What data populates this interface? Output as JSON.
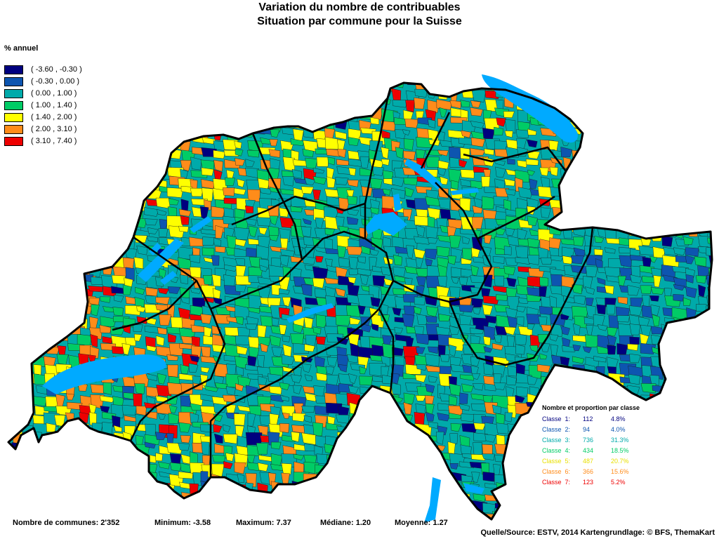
{
  "title": {
    "line1": "Variation du nombre de contribuables",
    "line2": "Situation par commune pour la Suisse"
  },
  "legend": {
    "unit": "% annuel",
    "classes": [
      {
        "label": "( -3.60 , -0.30 )",
        "color": "#00007f"
      },
      {
        "label": "( -0.30 , 0.00 )",
        "color": "#0d55b0"
      },
      {
        "label": "( 0.00 , 1.00 )",
        "color": "#00aaaa"
      },
      {
        "label": "( 1.00 , 1.40 )",
        "color": "#00cc66"
      },
      {
        "label": "( 1.40 , 2.00 )",
        "color": "#ffff00"
      },
      {
        "label": "( 2.00 , 3.10 )",
        "color": "#ff8c1a"
      },
      {
        "label": "( 3.10 , 7.40 )",
        "color": "#ee0000"
      }
    ]
  },
  "class_stats": {
    "title": "Nombre et proportion par classe",
    "rows": [
      {
        "label": "Classe  1:",
        "count": "112",
        "pct": "4.8%",
        "color": "#00007f"
      },
      {
        "label": "Classe  2:",
        "count": "94",
        "pct": "4.0%",
        "color": "#0d55b0"
      },
      {
        "label": "Classe  3:",
        "count": "736",
        "pct": "31.3%",
        "color": "#00aaaa"
      },
      {
        "label": "Classe  4:",
        "count": "434",
        "pct": "18.5%",
        "color": "#00cc66"
      },
      {
        "label": "Classe  5:",
        "count": "487",
        "pct": "20.7%",
        "color": "#ffff00"
      },
      {
        "label": "Classe  6:",
        "count": "366",
        "pct": "15.6%",
        "color": "#ff8c1a"
      },
      {
        "label": "Classe  7:",
        "count": "123",
        "pct": "5.2%",
        "color": "#ee0000"
      }
    ]
  },
  "footer": {
    "communes": "Nombre de communes: 2'352",
    "minimum": "Minimum: -3.58",
    "maximum": "Maximum: 7.37",
    "median": "Médiane: 1.20",
    "mean": "Moyenne: 1.27",
    "source": "Quelle/Source: ESTV, 2014 Kartengrundlage: © BFS, ThemaKart"
  },
  "colors": {
    "lake": "#00aaff",
    "border": "#000000",
    "commune_edge": "#1a1a1a"
  }
}
